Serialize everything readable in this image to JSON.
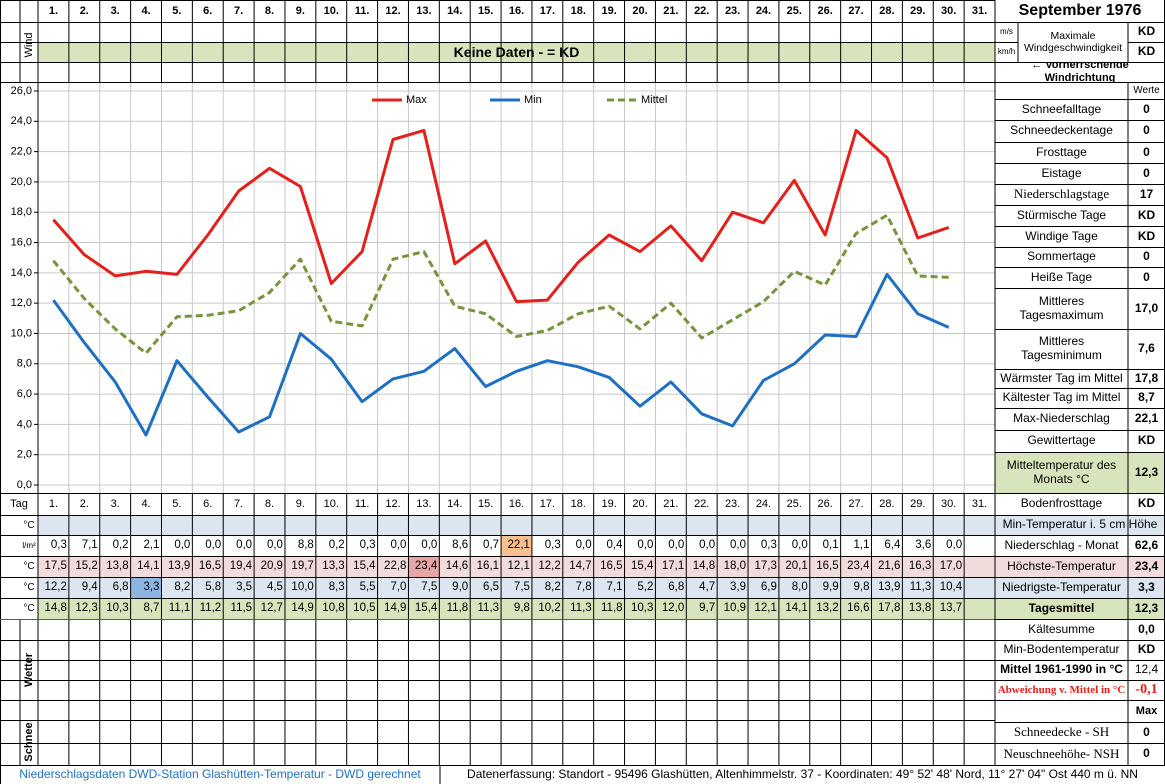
{
  "chart_data": {
    "type": "line",
    "categories": [
      "1.",
      "2.",
      "3.",
      "4.",
      "5.",
      "6.",
      "7.",
      "8.",
      "9.",
      "10.",
      "11.",
      "12.",
      "13.",
      "14.",
      "15.",
      "16.",
      "17.",
      "18.",
      "19.",
      "20.",
      "21.",
      "22.",
      "23.",
      "24.",
      "25.",
      "26.",
      "27.",
      "28.",
      "29.",
      "30.",
      "31."
    ],
    "series": [
      {
        "name": "Max",
        "color": "#e3201b",
        "dash": false,
        "values": [
          17.5,
          15.2,
          13.8,
          14.1,
          13.9,
          16.5,
          19.4,
          20.9,
          19.7,
          13.3,
          15.4,
          22.8,
          23.4,
          14.6,
          16.1,
          12.1,
          12.2,
          14.7,
          16.5,
          15.4,
          17.1,
          14.8,
          18.0,
          17.3,
          20.1,
          16.5,
          23.4,
          21.6,
          16.3,
          17.0,
          null
        ],
        "value_labels": [
          "17,5",
          "15,2",
          "13,8",
          "14,1",
          "13,9",
          "16,5",
          "19,4",
          "20,9",
          "19,7",
          "13,3",
          "15,4",
          "22,8",
          "23,4",
          "14,6",
          "16,1",
          "12,1",
          "12,2",
          "14,7",
          "16,5",
          "15,4",
          "17,1",
          "14,8",
          "18,0",
          "17,3",
          "20,1",
          "16,5",
          "23,4",
          "21,6",
          "16,3",
          "17,0",
          null
        ]
      },
      {
        "name": "Min",
        "color": "#1f70c1",
        "dash": false,
        "values": [
          12.2,
          9.4,
          6.8,
          3.3,
          8.2,
          5.8,
          3.5,
          4.5,
          10.0,
          8.3,
          5.5,
          7.0,
          7.5,
          9.0,
          6.5,
          7.5,
          8.2,
          7.8,
          7.1,
          5.2,
          6.8,
          4.7,
          3.9,
          6.9,
          8.0,
          9.9,
          9.8,
          13.9,
          11.3,
          10.4,
          null
        ],
        "value_labels": [
          "12,2",
          "9,4",
          "6,8",
          "3,3",
          "8,2",
          "5,8",
          "3,5",
          "4,5",
          "10,0",
          "8,3",
          "5,5",
          "7,0",
          "7,5",
          "9,0",
          "6,5",
          "7,5",
          "8,2",
          "7,8",
          "7,1",
          "5,2",
          "6,8",
          "4,7",
          "3,9",
          "6,9",
          "8,0",
          "9,9",
          "9,8",
          "13,9",
          "11,3",
          "10,4",
          null
        ]
      },
      {
        "name": "Mittel",
        "color": "#77933c",
        "dash": true,
        "values": [
          14.8,
          12.3,
          10.3,
          8.7,
          11.1,
          11.2,
          11.5,
          12.7,
          14.9,
          10.8,
          10.5,
          14.9,
          15.4,
          11.8,
          11.3,
          9.8,
          10.2,
          11.3,
          11.8,
          10.3,
          12.0,
          9.7,
          10.9,
          12.1,
          14.1,
          13.2,
          16.6,
          17.8,
          13.8,
          13.7,
          null
        ],
        "value_labels": [
          "14,8",
          "12,3",
          "10,3",
          "8,7",
          "11,1",
          "11,2",
          "11,5",
          "12,7",
          "14,9",
          "10,8",
          "10,5",
          "14,9",
          "15,4",
          "11,8",
          "11,3",
          "9,8",
          "10,2",
          "11,3",
          "11,8",
          "10,3",
          "12,0",
          "9,7",
          "10,9",
          "12,1",
          "14,1",
          "13,2",
          "16,6",
          "17,8",
          "13,8",
          "13,7",
          null
        ]
      }
    ],
    "ylim": [
      0,
      26
    ],
    "yticks": [
      {
        "value": 0,
        "label": "0,0"
      },
      {
        "value": 2,
        "label": "2,0"
      },
      {
        "value": 4,
        "label": "4,0"
      },
      {
        "value": 6,
        "label": "6,0"
      },
      {
        "value": 8,
        "label": "8,0"
      },
      {
        "value": 10,
        "label": "10,0"
      },
      {
        "value": 12,
        "label": "12,0"
      },
      {
        "value": 14,
        "label": "14,0"
      },
      {
        "value": 16,
        "label": "16,0"
      },
      {
        "value": 18,
        "label": "18,0"
      },
      {
        "value": 20,
        "label": "20,0"
      },
      {
        "value": 22,
        "label": "22,0"
      },
      {
        "value": 24,
        "label": "24,0"
      },
      {
        "value": 26,
        "label": "26,0"
      }
    ],
    "grid": true,
    "legend": "top"
  },
  "sheet": {
    "wind_label": "Wind",
    "no_data": "Keine Daten -  = KD",
    "tag_label": "Tag",
    "unit_celsius": "°C",
    "unit_precip": "l/m²",
    "weather_label": "Wetter",
    "snow_label": "Schnee",
    "precipitation": [
      "0,3",
      "7,1",
      "0,2",
      "2,1",
      "0,0",
      "0,0",
      "0,0",
      "0,0",
      "8,8",
      "0,2",
      "0,3",
      "0,0",
      "0,0",
      "8,6",
      "0,7",
      "22,1",
      "0,3",
      "0,0",
      "0,4",
      "0,0",
      "0,0",
      "0,0",
      "0,0",
      "0,3",
      "0,0",
      "0,1",
      "1,1",
      "6,4",
      "3,6",
      "0,0"
    ],
    "footer_left": "Niederschlagsdaten DWD-Station Glashütten-Temperatur -  DWD gerechnet",
    "footer_right": "Datenerfassung: Standort -  95496 Glashütten, Altenhimmelstr. 37 - Koordinaten: 49° 52' 48' Nord,  11° 27' 04\" Ost  440 m ü. NN"
  },
  "panel": {
    "title": "September 1976",
    "wind_units": [
      "m/s",
      "km/h"
    ],
    "wind_label": "Maximale Windgeschwindigkeit",
    "wind_values": [
      "KD",
      "KD"
    ],
    "wind_direction": "← Vorherrschende Windrichtung",
    "values_header": "Werte",
    "max_header": "Max",
    "rows": [
      {
        "label": "Schneefalltage",
        "value": "0"
      },
      {
        "label": "Schneedeckentage",
        "value": "0"
      },
      {
        "label": "Frosttage",
        "value": "0"
      },
      {
        "label": "Eistage",
        "value": "0"
      },
      {
        "label": "Niederschlagstage",
        "value": "17"
      },
      {
        "label": "Stürmische Tage",
        "value": "KD"
      },
      {
        "label": "Windige Tage",
        "value": "KD"
      },
      {
        "label": "Sommertage",
        "value": "0"
      },
      {
        "label": "Heiße Tage",
        "value": "0"
      },
      {
        "label": "Mittleres Tagesmaximum",
        "value": "17,0"
      },
      {
        "label": "Mittleres Tagesminimum",
        "value": "7,6"
      },
      {
        "label": "Wärmster Tag im Mittel",
        "value": "17,8"
      },
      {
        "label": "Kältester Tag im Mittel",
        "value": "8,7"
      },
      {
        "label": "Max-Niederschlag",
        "value": "22,1"
      },
      {
        "label": "Gewittertage",
        "value": "KD"
      },
      {
        "label": "Mitteltemperatur des Monats °C",
        "value": "12,3"
      },
      {
        "label": "Bodenfrosttage",
        "value": "KD"
      },
      {
        "label": "Min-Temperatur i. 5 cm Höhe"
      },
      {
        "label": "Niederschlag - Monat",
        "value": "62,6"
      },
      {
        "label": "Höchste-Temperatur",
        "value": "23,4"
      },
      {
        "label": "Niedrigste-Temperatur",
        "value": "3,3"
      },
      {
        "label": "Tagesmittel",
        "value": "12,3"
      },
      {
        "label": "Kältesumme",
        "value": "0,0"
      },
      {
        "label": "Min-Bodentemperatur",
        "value": "KD"
      },
      {
        "label": "Mittel 1961-1990 in °C",
        "value": "12,4"
      },
      {
        "label": "Abweichung v. Mittel in °C",
        "value": "-0,1"
      },
      {
        "label": "Schneedecke -  SH",
        "value": "0"
      },
      {
        "label": "Neuschneehöhe- NSH",
        "value": "0"
      }
    ]
  }
}
